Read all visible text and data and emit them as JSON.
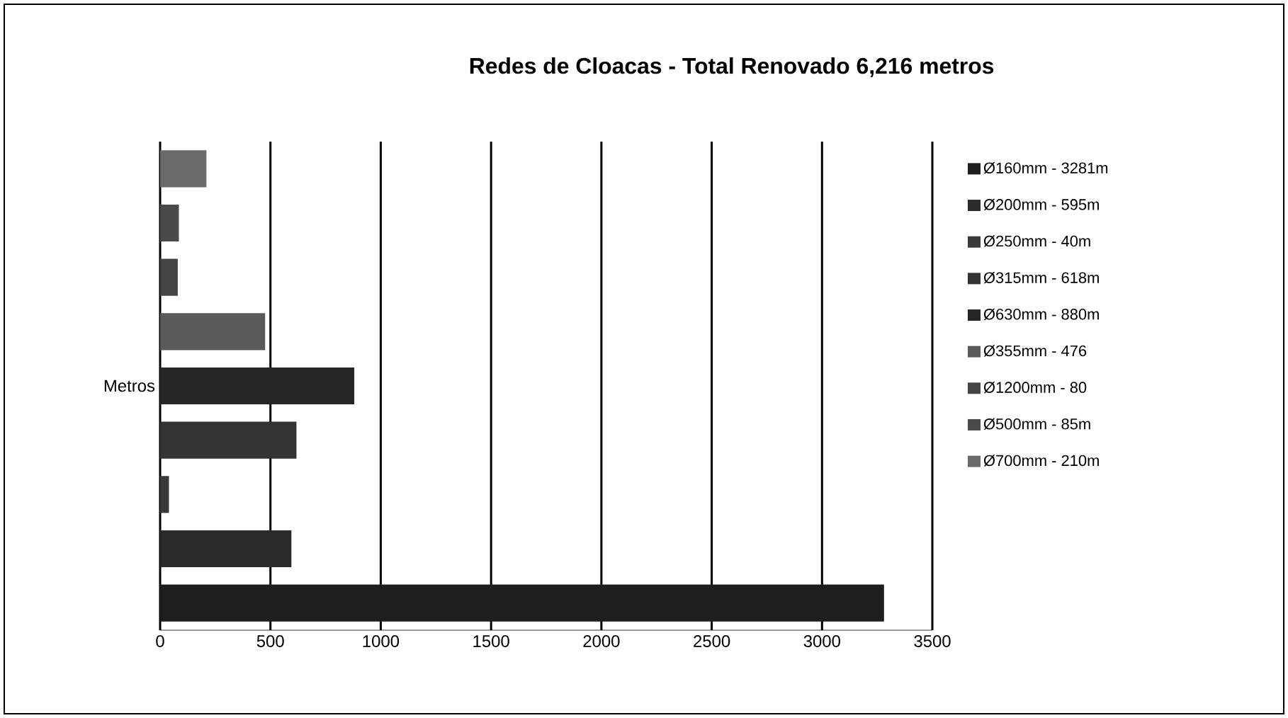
{
  "chart_data": {
    "type": "bar",
    "orientation": "horizontal",
    "title": "Redes de  Cloacas - Total Renovado 6,216 metros",
    "categories": [
      "Metros"
    ],
    "series": [
      {
        "name": "Ø160mm - 3281m",
        "color": "#1e1e1e",
        "values": [
          3281
        ]
      },
      {
        "name": "Ø200mm - 595m",
        "color": "#2a2a2a",
        "values": [
          595
        ]
      },
      {
        "name": "Ø250mm - 40m",
        "color": "#3a3a3a",
        "values": [
          40
        ]
      },
      {
        "name": "Ø315mm - 618m",
        "color": "#333333",
        "values": [
          618
        ]
      },
      {
        "name": "Ø630mm - 880m",
        "color": "#262626",
        "values": [
          880
        ]
      },
      {
        "name": "Ø355mm - 476",
        "color": "#5a5a5a",
        "values": [
          476
        ]
      },
      {
        "name": "Ø1200mm - 80",
        "color": "#444444",
        "values": [
          80
        ]
      },
      {
        "name": "Ø500mm - 85m",
        "color": "#4a4a4a",
        "values": [
          85
        ]
      },
      {
        "name": "Ø700mm - 210m",
        "color": "#6a6a6a",
        "values": [
          210
        ]
      }
    ],
    "xlim": [
      0,
      3500
    ],
    "xticks": [
      0,
      500,
      1000,
      1500,
      2000,
      2500,
      3000,
      3500
    ],
    "grid": "x",
    "legend": "right"
  }
}
